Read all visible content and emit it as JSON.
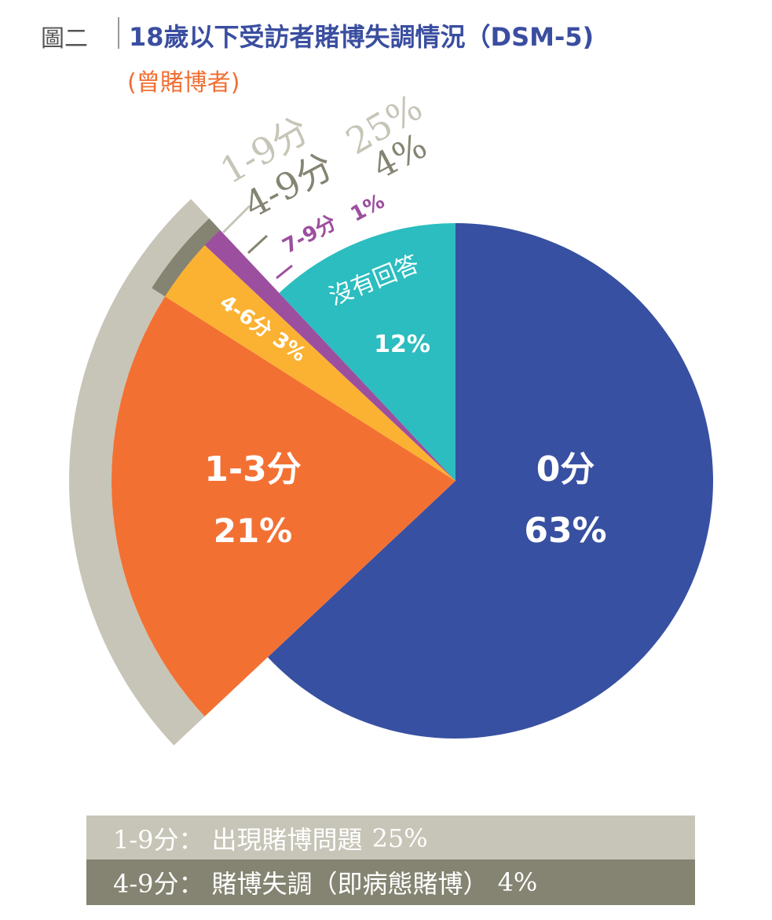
{
  "header": {
    "figure_label": "圖二",
    "title": "18歲以下受訪者賭博失調情況（DSM-5)",
    "subtitle": "(曾賭博者)"
  },
  "colors": {
    "zero": "#3850a1",
    "one_three": "#f37033",
    "four_six": "#fbb232",
    "seven_nine": "#9c4f9f",
    "no_answer": "#2bbdbf",
    "ring_1_9": "#c7c5b7",
    "ring_4_9": "#858472"
  },
  "chart_data": {
    "type": "pie",
    "slices": [
      {
        "label": "0分",
        "value": 63,
        "value_label": "63%",
        "color": "#3850a1"
      },
      {
        "label": "1-3分",
        "value": 21,
        "value_label": "21%",
        "color": "#f37033"
      },
      {
        "label": "4-6分",
        "value": 3,
        "value_label": "3%",
        "color": "#fbb232"
      },
      {
        "label": "7-9分",
        "value": 1,
        "value_label": "1%",
        "color": "#9c4f9f"
      },
      {
        "label": "沒有回答",
        "value": 12,
        "value_label": "12%",
        "color": "#2bbdbf"
      }
    ],
    "groups": [
      {
        "label": "1-9分",
        "value": 25,
        "value_label": "25%",
        "color": "#c7c5b7"
      },
      {
        "label": "4-9分",
        "value": 4,
        "value_label": "4%",
        "color": "#858472"
      }
    ]
  },
  "legend": {
    "row1": {
      "range": "1-9分：",
      "desc": "出現賭博問題",
      "pct": "25%"
    },
    "row2": {
      "range": "4-9分：",
      "desc": "賭博失調（即病態賭博）",
      "pct": "4%"
    }
  }
}
